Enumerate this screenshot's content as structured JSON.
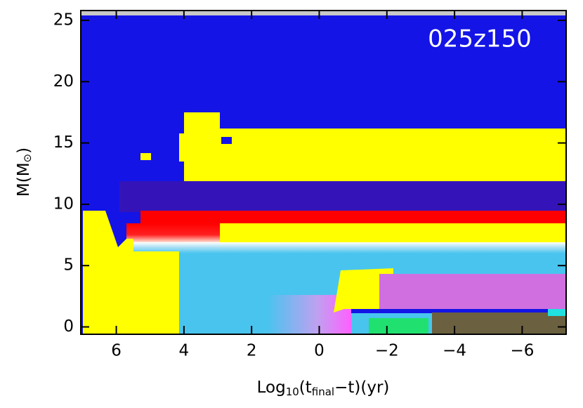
{
  "chart_data": {
    "type": "kippenhahn",
    "annotation": "025z150",
    "x_label": {
      "main": "Log",
      "sub1": "10",
      "open": "(t",
      "sub2": "final",
      "rest": "−t)(yr)"
    },
    "y_label": {
      "main": "M(M",
      "sub": "⊙",
      "rest": ")"
    },
    "xlim": [
      7.05,
      -7.3
    ],
    "xticks": [
      6,
      4,
      2,
      0,
      {
        "value": -2,
        "label": "−2"
      },
      {
        "value": -4,
        "label": "−4"
      },
      {
        "value": -6,
        "label": "−6"
      }
    ],
    "ylim": [
      -0.6,
      25.8
    ],
    "yticks": [
      0,
      5,
      10,
      15,
      20,
      25
    ]
  }
}
